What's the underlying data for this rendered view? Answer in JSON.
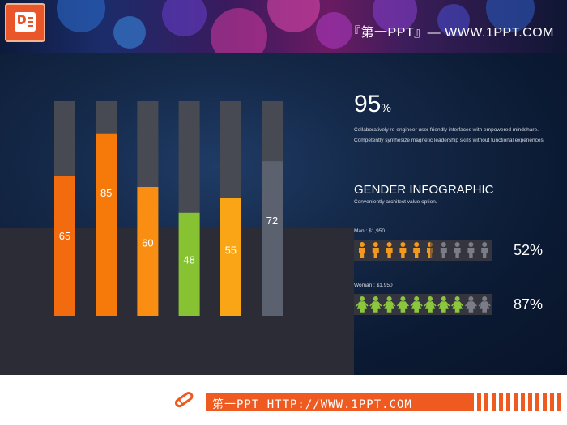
{
  "header": {
    "banner_text": "『第一PPT』— WWW.1PPT.COM"
  },
  "chart_data": {
    "type": "bar",
    "values": [
      65,
      85,
      60,
      48,
      55,
      72
    ],
    "colors": [
      "#f26b0f",
      "#f57a0a",
      "#f98e12",
      "#86c232",
      "#f9a516",
      "#5c6170"
    ],
    "track_color": "#484a53",
    "ylim": [
      0,
      100
    ],
    "grid": false
  },
  "stat": {
    "value": "95",
    "unit": "%",
    "lines": [
      "Collaboratively  re-engineer  user friendly  interfaces  with empowered mindshare.",
      "Competently  synthesize  magnetic  leadership  skills  without functional  experiences."
    ]
  },
  "infographic": {
    "title": "GENDER INFOGRAPHIC",
    "subtitle": "Conveniently  architect  value  option.",
    "rows": [
      {
        "label": "Man  :  $1,950",
        "percent": "52%",
        "filled": 5.5,
        "total": 10,
        "color": "#f39a1e",
        "empty_color": "#7a7d88",
        "icon": "man-icon"
      },
      {
        "label": "Woman  :  $1,950",
        "percent": "87%",
        "filled": 8,
        "total": 10,
        "color": "#8cc63f",
        "empty_color": "#7a7d88",
        "icon": "woman-icon"
      }
    ]
  },
  "footer": {
    "text": "第一PPT HTTP://WWW.1PPT.COM"
  }
}
